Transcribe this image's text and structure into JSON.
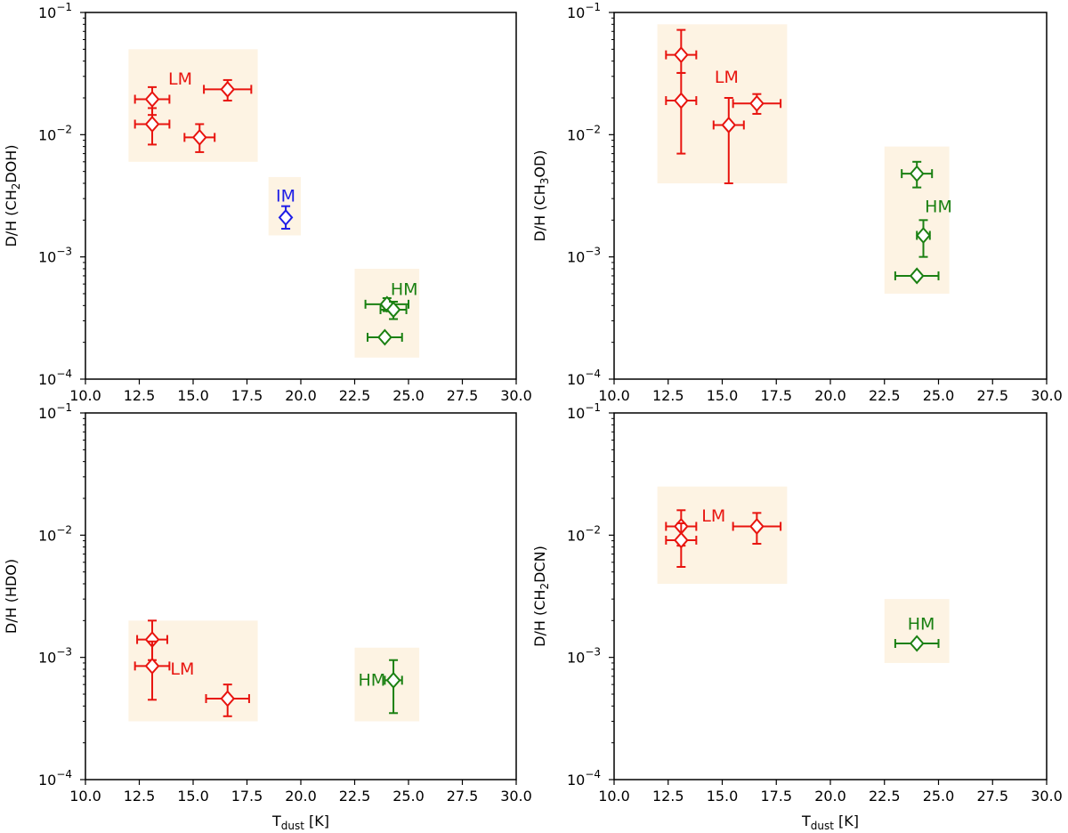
{
  "colors": {
    "LM": "#e8140f",
    "IM": "#1e1ee6",
    "HM": "#1a8012",
    "region": "#fdf3e3"
  },
  "chart_data": [
    {
      "type": "scatter",
      "name": "panel-ch2doh",
      "xlabel_main": "T",
      "xlabel_sub": "dust",
      "xlabel_rest": " [K]",
      "ylabel_pre": "D/H (CH",
      "ylabel_sub": "2",
      "ylabel_post": "DOH)",
      "xlim": [
        10.0,
        30.0
      ],
      "ylim": [
        0.0001,
        0.1
      ],
      "show_xlabel": false,
      "regions": [
        {
          "group": "LM",
          "x": [
            12.0,
            18.0
          ],
          "y": [
            0.006,
            0.05
          ],
          "label": "LM",
          "label_at": [
            14.4,
            0.029
          ]
        },
        {
          "group": "IM",
          "x": [
            18.5,
            20.0
          ],
          "y": [
            0.0015,
            0.0045
          ],
          "label": "IM",
          "label_at": [
            19.3,
            0.0032
          ]
        },
        {
          "group": "HM",
          "x": [
            22.5,
            25.5
          ],
          "y": [
            0.00015,
            0.0008
          ],
          "label": "HM",
          "label_at": [
            24.8,
            0.00055
          ]
        }
      ],
      "points": [
        {
          "group": "LM",
          "x": 13.1,
          "y": 0.0195,
          "xerr": 0.8,
          "ylow": 0.0145,
          "yhigh": 0.0245
        },
        {
          "group": "LM",
          "x": 13.1,
          "y": 0.0122,
          "xerr": 0.8,
          "ylow": 0.0083,
          "yhigh": 0.0165
        },
        {
          "group": "LM",
          "x": 16.6,
          "y": 0.0235,
          "xerr": 1.1,
          "ylow": 0.019,
          "yhigh": 0.028
        },
        {
          "group": "LM",
          "x": 15.3,
          "y": 0.0095,
          "xerr": 0.7,
          "ylow": 0.0072,
          "yhigh": 0.0122
        },
        {
          "group": "IM",
          "x": 19.3,
          "y": 0.0021,
          "xerr": 0.0,
          "ylow": 0.0017,
          "yhigh": 0.0026
        },
        {
          "group": "HM",
          "x": 24.0,
          "y": 0.00041,
          "xerr": 1.0,
          "ylow": 0.00036,
          "yhigh": 0.00046
        },
        {
          "group": "HM",
          "x": 24.3,
          "y": 0.00037,
          "xerr": 0.6,
          "ylow": 0.00031,
          "yhigh": 0.00043
        },
        {
          "group": "HM",
          "x": 23.9,
          "y": 0.00022,
          "xerr": 0.8,
          "ylow": 0.00022,
          "yhigh": 0.00022
        }
      ]
    },
    {
      "type": "scatter",
      "name": "panel-ch3od",
      "xlabel_main": "T",
      "xlabel_sub": "dust",
      "xlabel_rest": " [K]",
      "ylabel_pre": "D/H (CH",
      "ylabel_sub": "3",
      "ylabel_post": "OD)",
      "xlim": [
        10.0,
        30.0
      ],
      "ylim": [
        0.0001,
        0.1
      ],
      "show_xlabel": false,
      "regions": [
        {
          "group": "LM",
          "x": [
            12.0,
            18.0
          ],
          "y": [
            0.004,
            0.08
          ],
          "label": "LM",
          "label_at": [
            15.2,
            0.03
          ]
        },
        {
          "group": "HM",
          "x": [
            22.5,
            25.5
          ],
          "y": [
            0.0005,
            0.008
          ],
          "label": "HM",
          "label_at": [
            25.0,
            0.0026
          ]
        }
      ],
      "points": [
        {
          "group": "LM",
          "x": 13.1,
          "y": 0.045,
          "xerr": 0.7,
          "ylow": 0.032,
          "yhigh": 0.072
        },
        {
          "group": "LM",
          "x": 13.1,
          "y": 0.019,
          "xerr": 0.7,
          "ylow": 0.007,
          "yhigh": 0.032
        },
        {
          "group": "LM",
          "x": 16.6,
          "y": 0.018,
          "xerr": 1.1,
          "ylow": 0.0148,
          "yhigh": 0.0215
        },
        {
          "group": "LM",
          "x": 15.3,
          "y": 0.012,
          "xerr": 0.7,
          "ylow": 0.004,
          "yhigh": 0.02
        },
        {
          "group": "HM",
          "x": 24.0,
          "y": 0.0048,
          "xerr": 0.7,
          "ylow": 0.0037,
          "yhigh": 0.006
        },
        {
          "group": "HM",
          "x": 24.3,
          "y": 0.0015,
          "xerr": 0.3,
          "ylow": 0.001,
          "yhigh": 0.002
        },
        {
          "group": "HM",
          "x": 24.0,
          "y": 0.0007,
          "xerr": 1.0,
          "ylow": 0.0007,
          "yhigh": 0.0007
        }
      ]
    },
    {
      "type": "scatter",
      "name": "panel-hdo",
      "xlabel_main": "T",
      "xlabel_sub": "dust",
      "xlabel_rest": " [K]",
      "ylabel_pre": "D/H (HDO)",
      "ylabel_sub": "",
      "ylabel_post": "",
      "xlim": [
        10.0,
        30.0
      ],
      "ylim": [
        0.0001,
        0.1
      ],
      "show_xlabel": true,
      "regions": [
        {
          "group": "LM",
          "x": [
            12.0,
            18.0
          ],
          "y": [
            0.0003,
            0.002
          ],
          "label": "LM",
          "label_at": [
            14.5,
            0.00081
          ]
        },
        {
          "group": "HM",
          "x": [
            22.5,
            25.5
          ],
          "y": [
            0.0003,
            0.0012
          ],
          "label": "HM",
          "label_at": [
            23.3,
            0.00066
          ]
        }
      ],
      "points": [
        {
          "group": "LM",
          "x": 13.1,
          "y": 0.0014,
          "xerr": 0.7,
          "ylow": 0.00095,
          "yhigh": 0.002
        },
        {
          "group": "LM",
          "x": 13.1,
          "y": 0.00085,
          "xerr": 0.8,
          "ylow": 0.00045,
          "yhigh": 0.00135
        },
        {
          "group": "LM",
          "x": 16.6,
          "y": 0.00046,
          "xerr": 1.0,
          "ylow": 0.00033,
          "yhigh": 0.0006
        },
        {
          "group": "HM",
          "x": 24.3,
          "y": 0.00065,
          "xerr": 0.4,
          "ylow": 0.00035,
          "yhigh": 0.00095
        }
      ]
    },
    {
      "type": "scatter",
      "name": "panel-ch2dcn",
      "xlabel_main": "T",
      "xlabel_sub": "dust",
      "xlabel_rest": " [K]",
      "ylabel_pre": "D/H (CH",
      "ylabel_sub": "2",
      "ylabel_post": "DCN)",
      "xlim": [
        10.0,
        30.0
      ],
      "ylim": [
        0.0001,
        0.1
      ],
      "show_xlabel": true,
      "regions": [
        {
          "group": "LM",
          "x": [
            12.0,
            18.0
          ],
          "y": [
            0.004,
            0.025
          ],
          "label": "LM",
          "label_at": [
            14.6,
            0.0145
          ]
        },
        {
          "group": "HM",
          "x": [
            22.5,
            25.5
          ],
          "y": [
            0.0009,
            0.003
          ],
          "label": "HM",
          "label_at": [
            24.2,
            0.0019
          ]
        }
      ],
      "points": [
        {
          "group": "LM",
          "x": 13.1,
          "y": 0.0118,
          "xerr": 0.7,
          "ylow": 0.0082,
          "yhigh": 0.016
        },
        {
          "group": "LM",
          "x": 13.1,
          "y": 0.0091,
          "xerr": 0.7,
          "ylow": 0.0055,
          "yhigh": 0.0125
        },
        {
          "group": "LM",
          "x": 16.6,
          "y": 0.0118,
          "xerr": 1.1,
          "ylow": 0.0085,
          "yhigh": 0.0152
        },
        {
          "group": "HM",
          "x": 24.0,
          "y": 0.0013,
          "xerr": 1.0,
          "ylow": 0.0013,
          "yhigh": 0.0013
        }
      ]
    }
  ],
  "axes": {
    "x_ticks": [
      "10.0",
      "12.5",
      "15.0",
      "17.5",
      "20.0",
      "22.5",
      "25.0",
      "27.5",
      "30.0"
    ],
    "y_ticks": [
      {
        "base": "10",
        "exp": "−1",
        "value": 0.1
      },
      {
        "base": "10",
        "exp": "−2",
        "value": 0.01
      },
      {
        "base": "10",
        "exp": "−3",
        "value": 0.001
      },
      {
        "base": "10",
        "exp": "−4",
        "value": 0.0001
      }
    ]
  }
}
